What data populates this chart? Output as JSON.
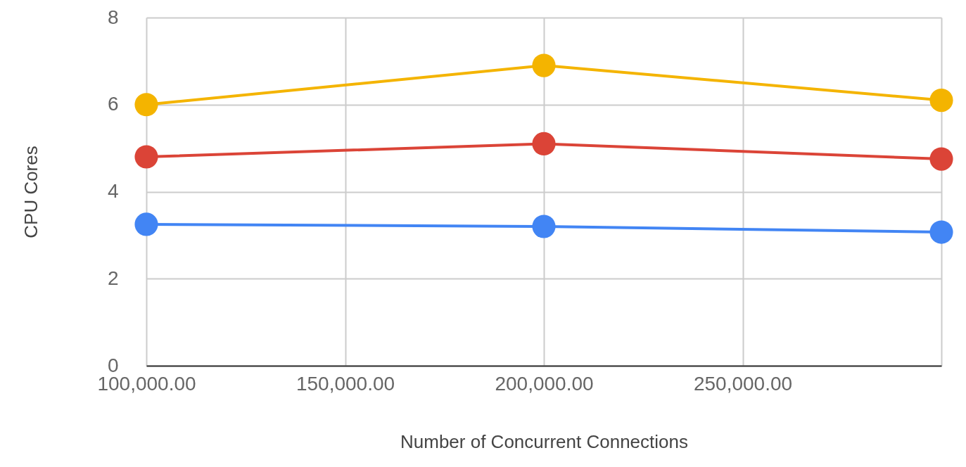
{
  "chart_data": {
    "type": "line",
    "xlabel": "Number of Concurrent Connections",
    "ylabel": "CPU Cores",
    "x": [
      100000,
      200000,
      300000
    ],
    "series": [
      {
        "color": "#f4b400",
        "values": [
          6.0,
          6.9,
          6.1
        ]
      },
      {
        "color": "#db4437",
        "values": [
          4.8,
          5.1,
          4.75
        ]
      },
      {
        "color": "#4285f4",
        "values": [
          3.25,
          3.2,
          3.07
        ]
      }
    ],
    "xlim": [
      100000,
      300000
    ],
    "xticks": [
      {
        "value": 100000,
        "label": "100,000.00"
      },
      {
        "value": 150000,
        "label": "150,000.00"
      },
      {
        "value": 200000,
        "label": "200,000.00"
      },
      {
        "value": 250000,
        "label": "250,000.00"
      },
      {
        "value": 300000,
        "label": null
      }
    ],
    "ylim": [
      0,
      8
    ],
    "yticks": [
      0,
      2,
      4,
      6,
      8
    ],
    "grid": true,
    "legend": false,
    "marker": "circle",
    "line_style": "solid"
  }
}
